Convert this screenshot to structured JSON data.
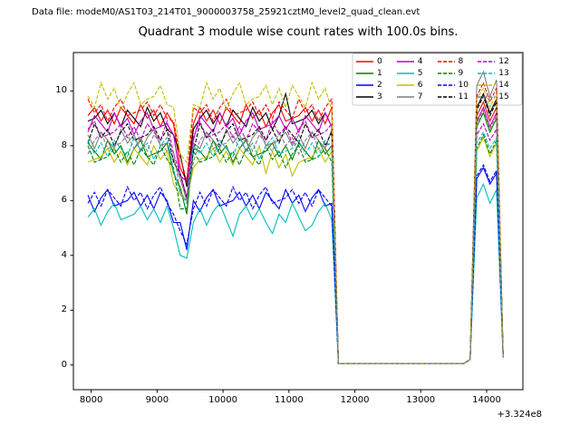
{
  "header": {
    "data_file_label": "Data file: modeM0/AS1T03_214T01_9000003758_25921cztM0_level2_quad_clean.evt"
  },
  "title": "Quadrant 3 module wise count rates with 100.0s bins.",
  "axes": {
    "xlim": [
      7730,
      14550
    ],
    "ylim": [
      -0.9,
      11.4
    ],
    "x_ticks": [
      8000,
      9000,
      10000,
      11000,
      12000,
      13000,
      14000
    ],
    "x_tick_labels": [
      "8000",
      "9000",
      "10000",
      "11000",
      "12000",
      "13000",
      "14000"
    ],
    "y_ticks": [
      0,
      2,
      4,
      6,
      8,
      10
    ],
    "y_tick_labels": [
      "0",
      "2",
      "4",
      "6",
      "8",
      "10"
    ],
    "x_offset_label": "+3.324e8"
  },
  "legend": {
    "ncol": 4,
    "location": "upper right",
    "edge_color": "#cccccc",
    "face_color": "#ffffff"
  },
  "chart_data": {
    "type": "line",
    "title": "Quadrant 3 module wise count rates with 100.0s bins.",
    "xlabel": "",
    "ylabel": "",
    "grid": false,
    "x_axis_offset": "+3.324e8",
    "x_start": 7950,
    "x_step": 100,
    "n_points": 64,
    "series": [
      {
        "label": "0",
        "color": "#ff0000",
        "dashed": false,
        "values": [
          9.1,
          9.4,
          8.9,
          9.3,
          8.8,
          9.4,
          9.1,
          8.8,
          9.5,
          9.0,
          9.3,
          8.7,
          9.2,
          8.8,
          7.2,
          6.7,
          8.8,
          9.4,
          8.9,
          9.3,
          8.8,
          9.4,
          9.1,
          8.8,
          9.5,
          9.0,
          9.3,
          8.7,
          9.2,
          9.5,
          8.9,
          9.0,
          9.1,
          9.4,
          8.9,
          9.3,
          8.8,
          9.4,
          0.05,
          0.05,
          0.05,
          0.05,
          0.05,
          0.05,
          0.05,
          0.05,
          0.05,
          0.05,
          0.05,
          0.05,
          0.05,
          0.05,
          0.05,
          0.05,
          0.05,
          0.05,
          0.05,
          0.05,
          0.2,
          9.1,
          9.6,
          8.9,
          9.4,
          0.3
        ]
      },
      {
        "label": "1",
        "color": "#008000",
        "dashed": false,
        "values": [
          8.1,
          7.8,
          7.5,
          8.2,
          7.7,
          8.0,
          7.4,
          7.9,
          8.2,
          7.6,
          7.7,
          7.8,
          8.1,
          7.0,
          6.5,
          5.5,
          7.9,
          7.8,
          7.5,
          8.2,
          7.7,
          8.0,
          7.4,
          7.9,
          8.2,
          7.6,
          7.7,
          7.8,
          8.1,
          7.6,
          8.0,
          7.5,
          8.1,
          7.8,
          7.5,
          8.2,
          7.7,
          8.0,
          0.05,
          0.05,
          0.05,
          0.05,
          0.05,
          0.05,
          0.05,
          0.05,
          0.05,
          0.05,
          0.05,
          0.05,
          0.05,
          0.05,
          0.05,
          0.05,
          0.05,
          0.05,
          0.05,
          0.05,
          0.2,
          8.7,
          9.2,
          8.5,
          9.0,
          0.3
        ]
      },
      {
        "label": "2",
        "color": "#0000ff",
        "dashed": false,
        "values": [
          6.2,
          5.6,
          6.1,
          6.4,
          5.8,
          5.9,
          6.0,
          6.3,
          5.8,
          6.2,
          5.7,
          6.3,
          6.0,
          5.2,
          5.2,
          4.2,
          6.0,
          5.6,
          6.1,
          6.4,
          5.8,
          5.9,
          6.0,
          6.3,
          5.8,
          6.2,
          5.7,
          6.3,
          6.0,
          5.7,
          6.4,
          5.9,
          6.2,
          5.6,
          6.1,
          6.4,
          5.8,
          5.9,
          0.05,
          0.05,
          0.05,
          0.05,
          0.05,
          0.05,
          0.05,
          0.05,
          0.05,
          0.05,
          0.05,
          0.05,
          0.05,
          0.05,
          0.05,
          0.05,
          0.05,
          0.05,
          0.05,
          0.05,
          0.2,
          6.8,
          7.2,
          6.6,
          7.0,
          0.3
        ]
      },
      {
        "label": "3",
        "color": "#000000",
        "dashed": false,
        "values": [
          8.9,
          9.0,
          9.3,
          8.8,
          9.2,
          8.7,
          9.3,
          9.0,
          8.7,
          9.4,
          8.9,
          9.2,
          8.6,
          8.4,
          7.7,
          6.5,
          8.6,
          9.0,
          9.3,
          8.8,
          9.2,
          8.7,
          9.3,
          9.0,
          8.7,
          9.4,
          8.9,
          9.2,
          8.6,
          9.1,
          9.9,
          8.8,
          8.9,
          9.0,
          9.3,
          8.8,
          9.2,
          8.7,
          0.05,
          0.05,
          0.05,
          0.05,
          0.05,
          0.05,
          0.05,
          0.05,
          0.05,
          0.05,
          0.05,
          0.05,
          0.05,
          0.05,
          0.05,
          0.05,
          0.05,
          0.05,
          0.05,
          0.05,
          0.2,
          9.4,
          9.9,
          9.2,
          9.7,
          0.3
        ]
      },
      {
        "label": "4",
        "color": "#bf00bf",
        "dashed": false,
        "values": [
          8.5,
          9.1,
          8.8,
          8.5,
          9.2,
          8.7,
          9.0,
          8.4,
          8.9,
          9.2,
          8.6,
          8.7,
          8.8,
          8.4,
          6.9,
          6.7,
          8.2,
          9.1,
          8.8,
          8.5,
          9.2,
          8.7,
          9.0,
          8.4,
          8.9,
          9.2,
          8.6,
          8.7,
          8.8,
          9.1,
          8.6,
          9.0,
          8.5,
          9.1,
          8.8,
          8.5,
          9.2,
          8.7,
          0.05,
          0.05,
          0.05,
          0.05,
          0.05,
          0.05,
          0.05,
          0.05,
          0.05,
          0.05,
          0.05,
          0.05,
          0.05,
          0.05,
          0.05,
          0.05,
          0.05,
          0.05,
          0.05,
          0.05,
          0.2,
          8.9,
          9.4,
          8.7,
          9.2,
          0.3
        ]
      },
      {
        "label": "5",
        "color": "#00bfbf",
        "dashed": false,
        "values": [
          5.4,
          5.7,
          5.1,
          5.6,
          5.9,
          5.3,
          5.4,
          5.5,
          5.8,
          5.3,
          5.7,
          5.2,
          5.8,
          5.0,
          4.0,
          3.9,
          5.2,
          5.7,
          5.1,
          5.6,
          5.9,
          5.3,
          4.7,
          5.5,
          5.8,
          5.3,
          5.7,
          5.2,
          4.8,
          5.5,
          5.2,
          5.9,
          5.4,
          4.9,
          5.1,
          5.6,
          5.9,
          5.3,
          0.05,
          0.05,
          0.05,
          0.05,
          0.05,
          0.05,
          0.05,
          0.05,
          0.05,
          0.05,
          0.05,
          0.05,
          0.05,
          0.05,
          0.05,
          0.05,
          0.05,
          0.05,
          0.05,
          0.05,
          0.2,
          6.1,
          6.6,
          5.9,
          6.4,
          0.25
        ]
      },
      {
        "label": "6",
        "color": "#bfbf00",
        "dashed": false,
        "values": [
          7.4,
          7.5,
          7.6,
          7.9,
          7.4,
          7.8,
          7.3,
          7.9,
          7.6,
          7.3,
          8.0,
          7.5,
          7.8,
          6.6,
          6.2,
          6.0,
          7.2,
          7.5,
          7.6,
          7.9,
          7.4,
          7.8,
          7.3,
          7.9,
          7.6,
          7.3,
          8.0,
          7.0,
          7.8,
          7.2,
          7.7,
          6.9,
          7.4,
          7.5,
          7.6,
          7.9,
          7.4,
          7.8,
          0.05,
          0.05,
          0.05,
          0.05,
          0.05,
          0.05,
          0.05,
          0.05,
          0.05,
          0.05,
          0.05,
          0.05,
          0.05,
          0.05,
          0.05,
          0.05,
          0.05,
          0.05,
          0.05,
          0.05,
          0.2,
          7.8,
          8.3,
          7.6,
          8.1,
          0.3
        ]
      },
      {
        "label": "7",
        "color": "#7f7f7f",
        "dashed": false,
        "values": [
          8.4,
          7.9,
          8.5,
          8.2,
          7.9,
          8.6,
          8.1,
          8.4,
          7.8,
          8.3,
          8.6,
          8.0,
          8.1,
          7.5,
          6.8,
          6.0,
          8.1,
          7.9,
          8.5,
          8.2,
          7.9,
          8.6,
          8.1,
          8.4,
          7.8,
          8.3,
          8.6,
          8.0,
          8.1,
          8.2,
          8.5,
          8.0,
          8.4,
          7.9,
          8.5,
          8.2,
          7.9,
          8.6,
          0.05,
          0.05,
          0.05,
          0.05,
          0.05,
          0.05,
          0.05,
          0.05,
          0.05,
          0.05,
          0.05,
          0.05,
          0.05,
          0.05,
          0.05,
          0.05,
          0.05,
          0.05,
          0.05,
          0.05,
          0.2,
          10.2,
          10.7,
          9.8,
          10.4,
          0.3
        ]
      },
      {
        "label": "8",
        "color": "#ff0000",
        "dashed": true,
        "values": [
          9.7,
          9.2,
          9.5,
          8.9,
          9.4,
          9.7,
          9.1,
          9.2,
          9.3,
          9.6,
          9.1,
          9.5,
          9.0,
          8.9,
          7.6,
          6.7,
          9.4,
          9.2,
          9.5,
          8.9,
          9.4,
          9.7,
          9.1,
          9.2,
          9.3,
          9.6,
          9.1,
          9.5,
          9.0,
          9.6,
          9.3,
          9.0,
          9.7,
          9.2,
          9.5,
          8.9,
          9.4,
          9.7,
          0.05,
          0.05,
          0.05,
          0.05,
          0.05,
          0.05,
          0.05,
          0.05,
          0.05,
          0.05,
          0.05,
          0.05,
          0.05,
          0.05,
          0.05,
          0.05,
          0.05,
          0.05,
          0.05,
          0.05,
          0.2,
          9.8,
          10.3,
          9.6,
          10.1,
          0.3
        ]
      },
      {
        "label": "9",
        "color": "#008000",
        "dashed": true,
        "values": [
          8.0,
          7.4,
          7.5,
          7.6,
          7.9,
          7.4,
          7.8,
          7.3,
          7.9,
          7.6,
          7.3,
          8.0,
          7.5,
          7.2,
          5.7,
          5.7,
          7.8,
          7.4,
          7.5,
          7.6,
          7.9,
          7.4,
          7.8,
          7.3,
          7.9,
          7.6,
          7.3,
          8.0,
          7.5,
          7.8,
          7.2,
          7.7,
          8.0,
          7.4,
          7.5,
          7.6,
          7.9,
          7.4,
          0.05,
          0.05,
          0.05,
          0.05,
          0.05,
          0.05,
          0.05,
          0.05,
          0.05,
          0.05,
          0.05,
          0.05,
          0.05,
          0.05,
          0.05,
          0.05,
          0.05,
          0.05,
          0.05,
          0.05,
          0.2,
          7.9,
          8.4,
          7.7,
          8.2,
          0.3
        ]
      },
      {
        "label": "10",
        "color": "#0000ff",
        "dashed": true,
        "values": [
          5.9,
          6.3,
          5.8,
          6.4,
          6.1,
          5.8,
          6.5,
          6.0,
          6.3,
          5.7,
          6.2,
          6.5,
          5.9,
          5.5,
          4.9,
          4.4,
          5.7,
          6.3,
          5.8,
          6.4,
          6.1,
          5.8,
          6.5,
          6.0,
          6.3,
          5.7,
          6.2,
          6.5,
          5.9,
          6.0,
          6.1,
          6.4,
          5.9,
          6.3,
          5.8,
          6.4,
          6.1,
          5.8,
          0.05,
          0.05,
          0.05,
          0.05,
          0.05,
          0.05,
          0.05,
          0.05,
          0.05,
          0.05,
          0.05,
          0.05,
          0.05,
          0.05,
          0.05,
          0.05,
          0.05,
          0.05,
          0.05,
          0.05,
          0.2,
          6.9,
          7.3,
          6.7,
          7.1,
          0.3
        ]
      },
      {
        "label": "11",
        "color": "#000000",
        "dashed": true,
        "values": [
          8.1,
          8.8,
          8.3,
          8.6,
          8.0,
          8.5,
          8.8,
          8.2,
          8.3,
          8.4,
          8.7,
          8.2,
          8.6,
          7.4,
          7.0,
          6.1,
          7.8,
          8.8,
          8.3,
          8.6,
          8.0,
          8.5,
          8.8,
          8.2,
          8.3,
          8.4,
          8.7,
          8.2,
          8.6,
          8.1,
          8.7,
          8.4,
          8.1,
          8.8,
          8.3,
          8.6,
          8.0,
          8.5,
          0.05,
          0.05,
          0.05,
          0.05,
          0.05,
          0.05,
          0.05,
          0.05,
          0.05,
          0.05,
          0.05,
          0.05,
          0.05,
          0.05,
          0.05,
          0.05,
          0.05,
          0.05,
          0.05,
          0.05,
          0.2,
          9.3,
          9.8,
          9.1,
          9.6,
          0.3
        ]
      },
      {
        "label": "12",
        "color": "#bf00bf",
        "dashed": true,
        "values": [
          8.6,
          8.9,
          8.3,
          8.4,
          8.5,
          8.8,
          8.3,
          8.7,
          8.2,
          8.8,
          8.5,
          8.2,
          8.9,
          7.7,
          7.0,
          6.1,
          8.3,
          8.9,
          8.3,
          8.4,
          8.5,
          8.8,
          8.3,
          8.7,
          8.2,
          8.8,
          8.5,
          8.2,
          8.9,
          8.4,
          8.7,
          8.1,
          8.6,
          8.9,
          8.3,
          8.4,
          8.5,
          8.8,
          0.05,
          0.05,
          0.05,
          0.05,
          0.05,
          0.05,
          0.05,
          0.05,
          0.05,
          0.05,
          0.05,
          0.05,
          0.05,
          0.05,
          0.05,
          0.05,
          0.05,
          0.05,
          0.05,
          0.05,
          0.2,
          8.4,
          8.8,
          8.2,
          8.6,
          0.3
        ]
      },
      {
        "label": "13",
        "color": "#00bfbf",
        "dashed": true,
        "values": [
          8.2,
          7.7,
          8.1,
          7.6,
          8.2,
          7.9,
          7.6,
          8.3,
          7.8,
          8.1,
          7.5,
          8.0,
          8.3,
          7.1,
          6.3,
          5.9,
          8.0,
          7.7,
          8.1,
          7.6,
          8.2,
          7.9,
          7.6,
          8.3,
          7.8,
          8.1,
          7.5,
          8.0,
          8.3,
          7.7,
          7.8,
          7.9,
          8.2,
          7.7,
          8.1,
          7.6,
          8.2,
          7.9,
          0.05,
          0.05,
          0.05,
          0.05,
          0.05,
          0.05,
          0.05,
          0.05,
          0.05,
          0.05,
          0.05,
          0.05,
          0.05,
          0.05,
          0.05,
          0.05,
          0.05,
          0.05,
          0.05,
          0.05,
          0.2,
          8.1,
          8.5,
          7.9,
          8.3,
          0.3
        ]
      },
      {
        "label": "14",
        "color": "#bfbf00",
        "dashed": true,
        "values": [
          9.8,
          9.4,
          10.3,
          9.7,
          10.1,
          9.3,
          9.9,
          10.3,
          9.5,
          9.7,
          9.8,
          10.2,
          9.5,
          9.4,
          7.7,
          7.4,
          9.5,
          9.4,
          10.3,
          9.7,
          10.1,
          9.3,
          9.9,
          10.3,
          9.5,
          9.7,
          9.8,
          10.2,
          9.5,
          10.1,
          9.4,
          10.2,
          9.8,
          9.4,
          10.3,
          9.7,
          10.1,
          9.3,
          0.05,
          0.05,
          0.05,
          0.05,
          0.05,
          0.05,
          0.05,
          0.05,
          0.05,
          0.05,
          0.05,
          0.05,
          0.05,
          0.05,
          0.05,
          0.05,
          0.05,
          0.05,
          0.05,
          0.05,
          0.2,
          9.7,
          10.1,
          9.4,
          9.9,
          0.3
        ]
      },
      {
        "label": "15",
        "color": "#7f7f7f",
        "dashed": true,
        "values": [
          7.7,
          8.2,
          8.5,
          7.9,
          8.0,
          8.1,
          8.4,
          7.9,
          8.3,
          7.8,
          8.4,
          8.1,
          7.8,
          7.8,
          6.3,
          6.0,
          7.4,
          8.2,
          8.5,
          7.9,
          8.0,
          8.1,
          8.4,
          7.9,
          8.3,
          7.8,
          8.4,
          8.1,
          7.8,
          8.5,
          8.0,
          8.3,
          7.7,
          8.2,
          8.5,
          7.9,
          8.0,
          8.1,
          0.05,
          0.05,
          0.05,
          0.05,
          0.05,
          0.05,
          0.05,
          0.05,
          0.05,
          0.05,
          0.05,
          0.05,
          0.05,
          0.05,
          0.05,
          0.05,
          0.05,
          0.05,
          0.05,
          0.05,
          0.2,
          8.8,
          9.3,
          8.6,
          9.1,
          0.3
        ]
      }
    ]
  }
}
